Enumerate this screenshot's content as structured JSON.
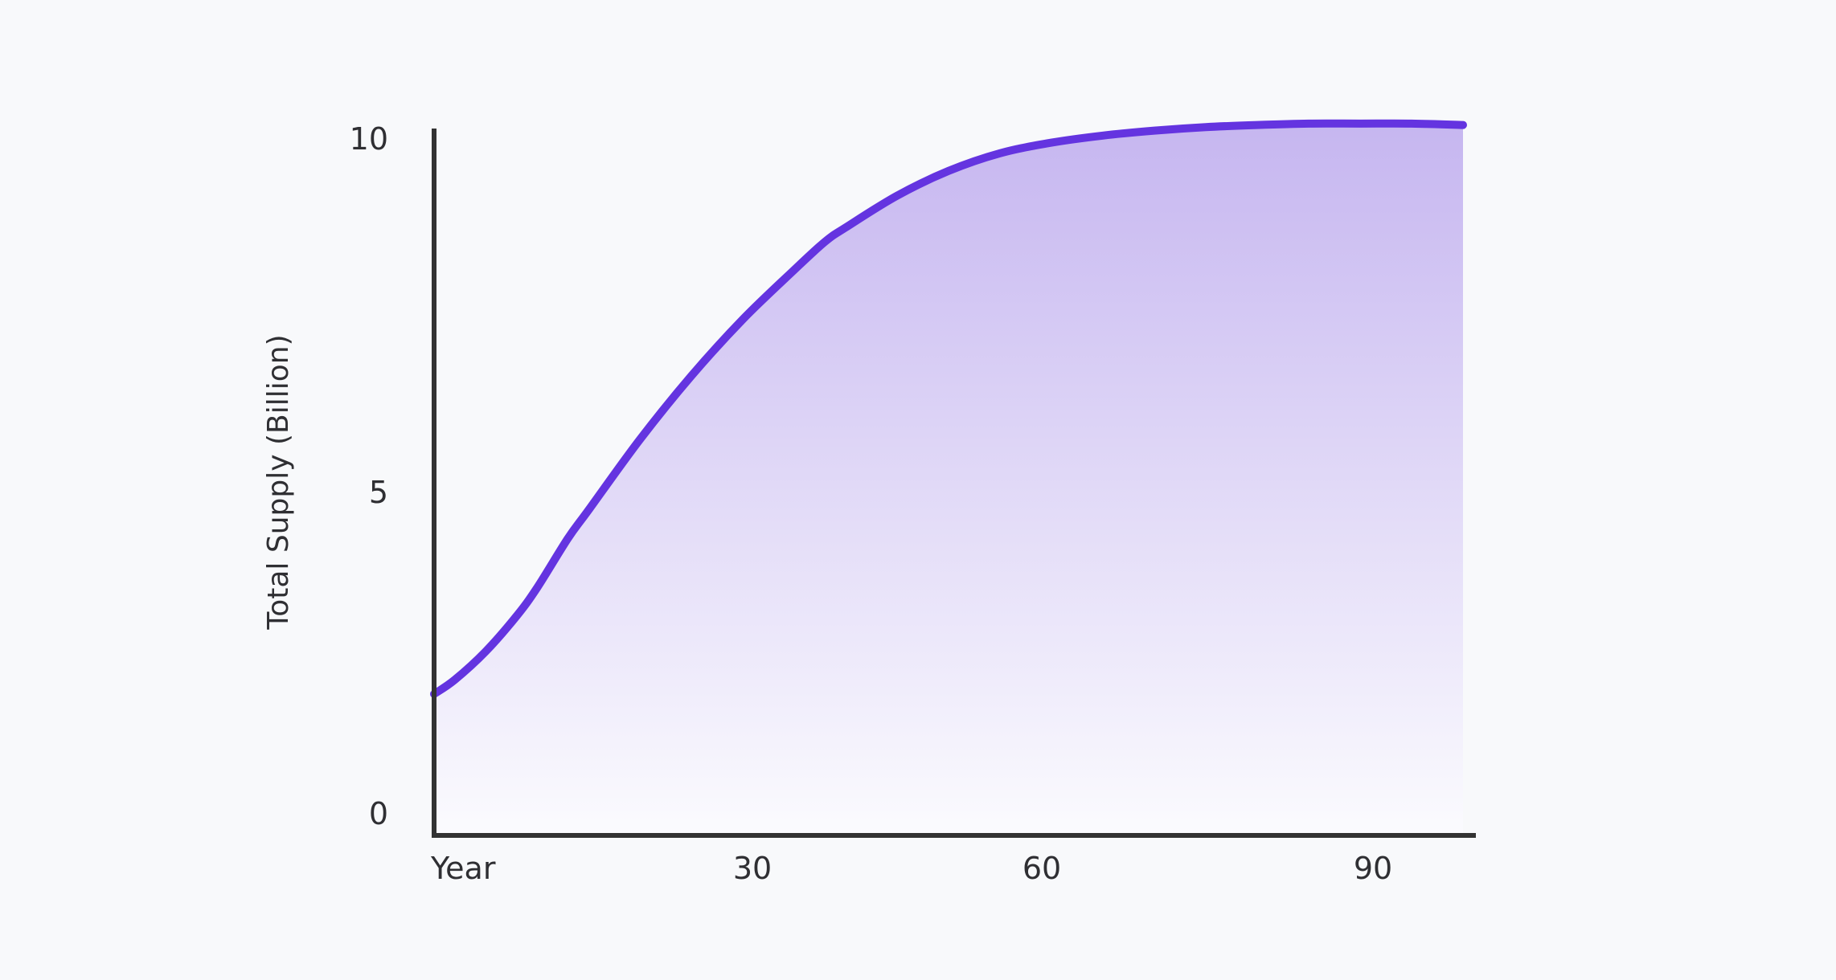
{
  "chart_data": {
    "type": "area",
    "title": "",
    "xlabel": "",
    "ylabel": "Total Supply (Billion)",
    "ylim": [
      0,
      10
    ],
    "xlim": [
      0,
      100
    ],
    "x_ticks": [
      {
        "value": 0,
        "label": "Year"
      },
      {
        "value": 30,
        "label": "30"
      },
      {
        "value": 60,
        "label": "60"
      },
      {
        "value": 90,
        "label": "90"
      }
    ],
    "y_ticks": [
      {
        "value": 0,
        "label": "0"
      },
      {
        "value": 5,
        "label": "5"
      },
      {
        "value": 10,
        "label": "10"
      }
    ],
    "grid": false,
    "legend": "none",
    "series": [
      {
        "x": [
          0,
          2,
          5,
          8,
          10,
          13,
          15,
          20,
          25,
          30,
          35,
          38,
          40,
          45,
          50,
          55,
          60,
          65,
          70,
          75,
          80,
          85,
          90,
          95,
          100
        ],
        "y": [
          2.0,
          2.2,
          2.6,
          3.1,
          3.5,
          4.2,
          4.6,
          5.6,
          6.5,
          7.3,
          8.0,
          8.4,
          8.6,
          9.05,
          9.4,
          9.65,
          9.8,
          9.9,
          9.97,
          10.02,
          10.05,
          10.07,
          10.07,
          10.07,
          10.05
        ]
      }
    ],
    "colors": {
      "line": "#6434e0",
      "fill_top": "#c6b6f0",
      "fill_bottom": "#fbfbfe",
      "axis": "#333333",
      "text": "#2f2f33"
    }
  }
}
